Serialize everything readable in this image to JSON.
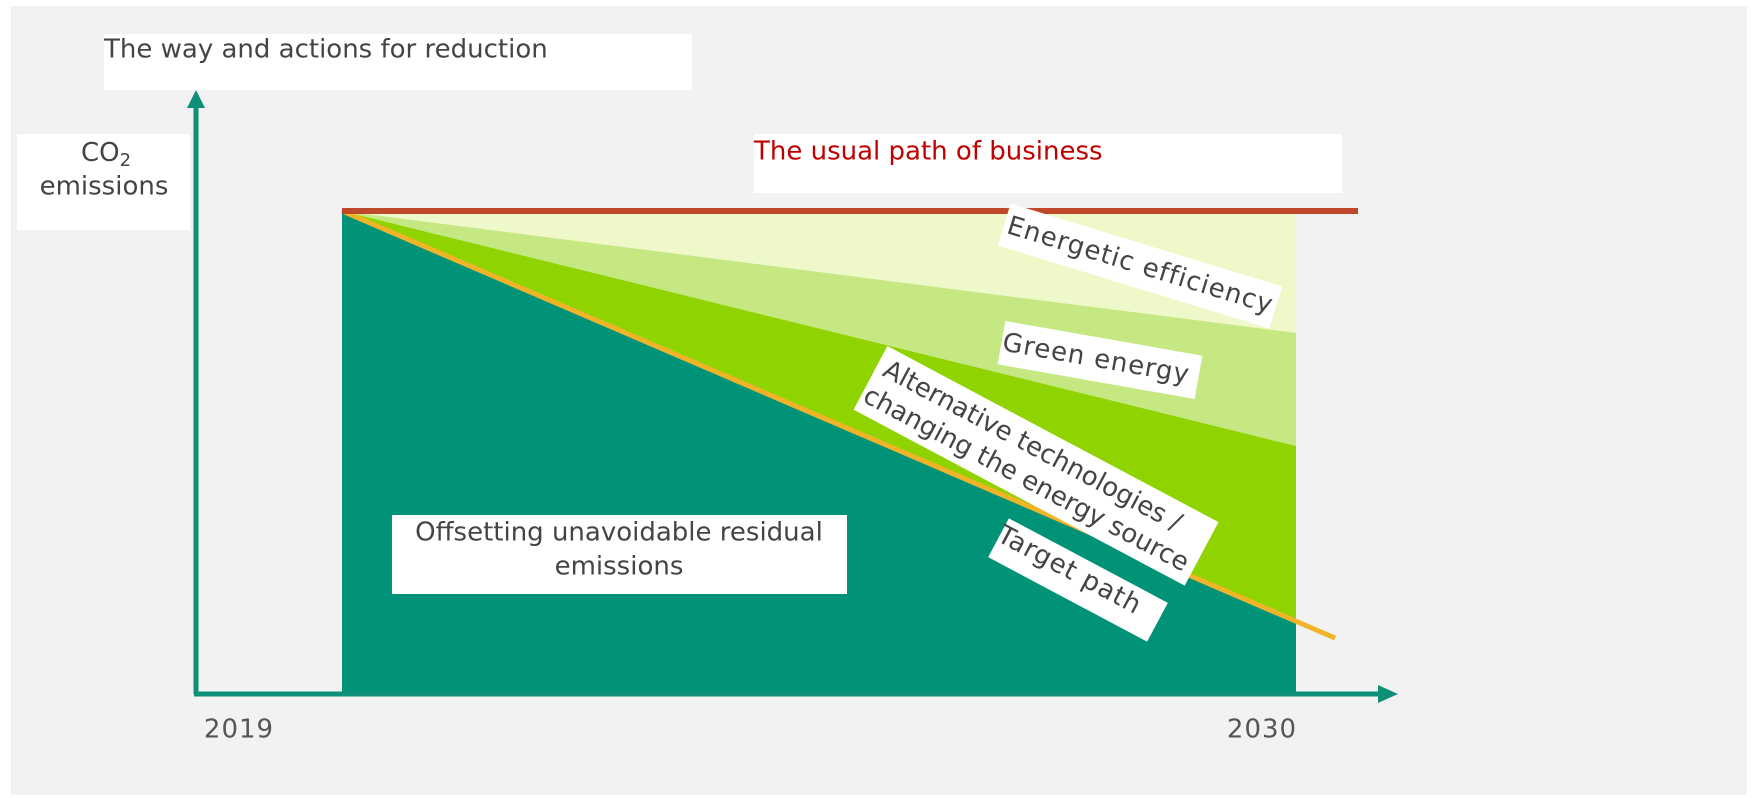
{
  "title": "The way and actions for reduction",
  "y_axis": {
    "main": "CO",
    "sub": "2",
    "line2": "emissions"
  },
  "x_axis": {
    "start": "2019",
    "end": "2030"
  },
  "labels": {
    "business": "The usual path of business",
    "efficiency": "Energetic efficiency",
    "green": "Green energy",
    "alternative": [
      "Alternative technologies /",
      "changing the energy source"
    ],
    "target": "Target path",
    "offsetting": [
      "Offsetting unavoidable residual",
      "emissions"
    ]
  }
}
